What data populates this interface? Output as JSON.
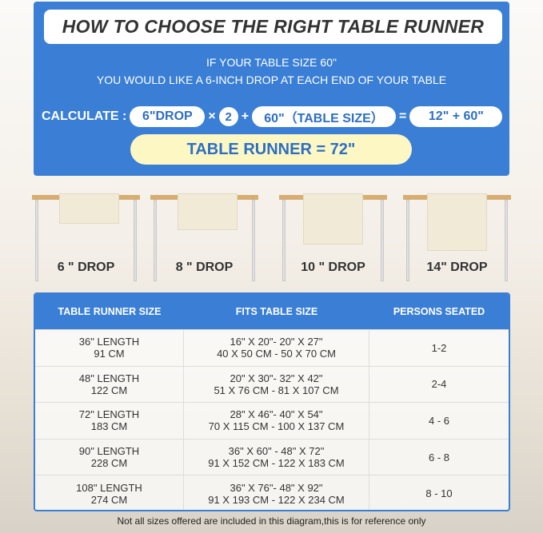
{
  "header": {
    "title": "HOW TO CHOOSE THE RIGHT TABLE RUNNER",
    "line1": "IF YOUR TABLE SIZE 60\"",
    "line2": "YOU WOULD LIKE A 6-INCH DROP AT EACH END OF YOUR TABLE"
  },
  "calc": {
    "label": "CALCULATE :",
    "drop": "6\"DROP",
    "times": "×",
    "factor": "2",
    "plus": "+",
    "table": "60\"（TABLE SIZE）",
    "equals": "=",
    "sum": "12\" + 60\"",
    "result": "TABLE RUNNER = 72\""
  },
  "drops": [
    {
      "label": "6 \" DROP"
    },
    {
      "label": "8 \" DROP"
    },
    {
      "label": "10 \" DROP"
    },
    {
      "label": "14\" DROP"
    }
  ],
  "table": {
    "headers": [
      "TABLE RUNNER SIZE",
      "FITS TABLE SIZE",
      "PERSONS SEATED"
    ],
    "rows": [
      {
        "len": "36\" LENGTH",
        "cm": "91 CM",
        "fit_in": "16\" X 20\"- 20\" X 27\"",
        "fit_cm": "40 X 50 CM - 50 X 70 CM",
        "seated": "1-2"
      },
      {
        "len": "48\" LENGTH",
        "cm": "122 CM",
        "fit_in": "20\" X 30\"- 32\" X 42\"",
        "fit_cm": "51 X 76 CM - 81 X 107 CM",
        "seated": "2-4"
      },
      {
        "len": "72\" LENGTH",
        "cm": "183 CM",
        "fit_in": "28\" X 46\"- 40\" X 54\"",
        "fit_cm": "70 X 115 CM - 100 X 137 CM",
        "seated": "4 - 6"
      },
      {
        "len": "90\" LENGTH",
        "cm": "228 CM",
        "fit_in": "36\" X 60\" - 48\" X 72\"",
        "fit_cm": "91 X 152 CM - 122 X 183 CM",
        "seated": "6 - 8"
      },
      {
        "len": "108\" LENGTH",
        "cm": "274 CM",
        "fit_in": "36\" X 76\"- 48\" X 92\"",
        "fit_cm": "91 X 193 CM - 122 X 234 CM",
        "seated": "8 - 10"
      }
    ]
  },
  "footnote": "Not all sizes offered are included in this diagram,this is for reference only",
  "colors": {
    "blue": "#3a7fd5",
    "yellow": "#fdf7c3",
    "wood": "#d6ae72"
  }
}
